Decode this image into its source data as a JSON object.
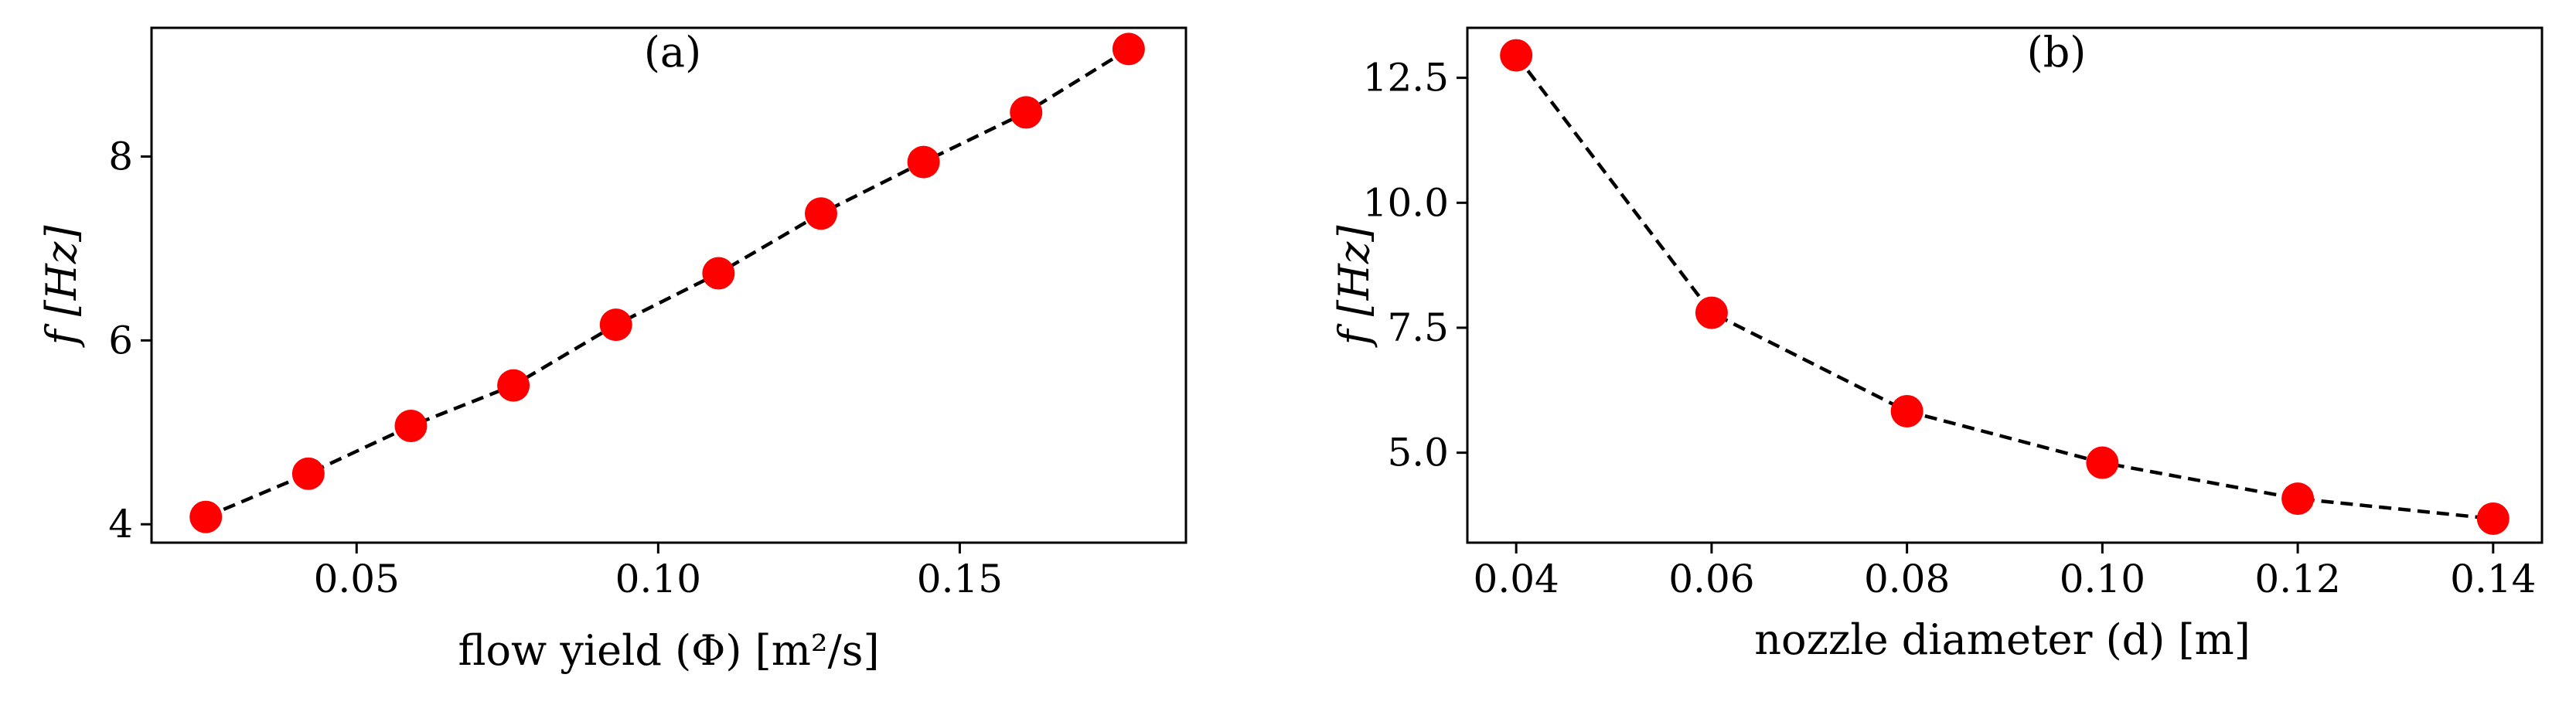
{
  "chart_data": [
    {
      "type": "scatter",
      "panel_label": "(a)",
      "xlabel": "flow yield (Φ) [m²/s]",
      "ylabel": "f [Hz]",
      "xlim": [
        0.016,
        0.1875
      ],
      "ylim": [
        3.8,
        9.4
      ],
      "xticks": [
        0.05,
        0.1,
        0.15
      ],
      "xtick_labels": [
        "0.05",
        "0.10",
        "0.15"
      ],
      "yticks": [
        4,
        6,
        8
      ],
      "ytick_labels": [
        "4",
        "6",
        "8"
      ],
      "grid": false,
      "series": [
        {
          "x": [
            0.025,
            0.042,
            0.059,
            0.076,
            0.093,
            0.11,
            0.127,
            0.144,
            0.161,
            0.178
          ],
          "y": [
            4.08,
            4.55,
            5.07,
            5.51,
            6.17,
            6.73,
            7.38,
            7.94,
            8.48,
            9.17
          ],
          "line_style": "dashed",
          "line_color": "#000000",
          "marker_color": "#ff0000"
        }
      ]
    },
    {
      "type": "scatter",
      "panel_label": "(b)",
      "xlabel": "nozzle diameter (d) [m]",
      "ylabel": "f [Hz]",
      "xlim": [
        0.035,
        0.145
      ],
      "ylim": [
        3.2,
        13.5
      ],
      "xticks": [
        0.04,
        0.06,
        0.08,
        0.1,
        0.12,
        0.14
      ],
      "xtick_labels": [
        "0.04",
        "0.06",
        "0.08",
        "0.10",
        "0.12",
        "0.14"
      ],
      "yticks": [
        5.0,
        7.5,
        10.0,
        12.5
      ],
      "ytick_labels": [
        "5.0",
        "7.5",
        "10.0",
        "12.5"
      ],
      "grid": false,
      "series": [
        {
          "x": [
            0.04,
            0.06,
            0.08,
            0.1,
            0.12,
            0.14
          ],
          "y": [
            12.95,
            7.8,
            5.83,
            4.8,
            4.08,
            3.68
          ],
          "line_style": "dashed",
          "line_color": "#000000",
          "marker_color": "#ff0000"
        }
      ]
    }
  ]
}
